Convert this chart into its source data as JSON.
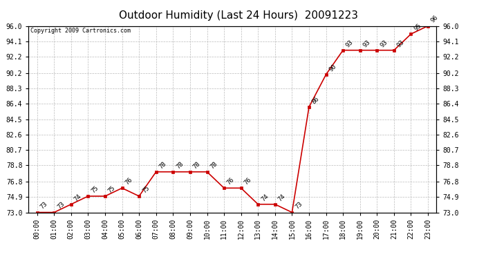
{
  "title": "Outdoor Humidity (Last 24 Hours)  20091223",
  "copyright": "Copyright 2009 Cartronics.com",
  "x_labels": [
    "00:00",
    "01:00",
    "02:00",
    "03:00",
    "04:00",
    "05:00",
    "06:00",
    "07:00",
    "08:00",
    "09:00",
    "10:00",
    "11:00",
    "12:00",
    "13:00",
    "14:00",
    "15:00",
    "16:00",
    "17:00",
    "18:00",
    "19:00",
    "20:00",
    "21:00",
    "22:00",
    "23:00"
  ],
  "x_values": [
    0,
    1,
    2,
    3,
    4,
    5,
    6,
    7,
    8,
    9,
    10,
    11,
    12,
    13,
    14,
    15,
    16,
    17,
    18,
    19,
    20,
    21,
    22,
    23
  ],
  "y_values": [
    73,
    73,
    74,
    75,
    75,
    76,
    75,
    78,
    78,
    78,
    78,
    76,
    76,
    74,
    74,
    73,
    86,
    90,
    93,
    93,
    93,
    93,
    95,
    96
  ],
  "point_labels": [
    "73",
    "73",
    "74",
    "75",
    "75",
    "76",
    "75",
    "78",
    "78",
    "78",
    "78",
    "76",
    "76",
    "74",
    "74",
    "73",
    "86",
    "90",
    "93",
    "93",
    "93",
    "93",
    "95",
    "96"
  ],
  "ylim_min": 73.0,
  "ylim_max": 96.0,
  "yticks": [
    73.0,
    74.9,
    76.8,
    78.8,
    80.7,
    82.6,
    84.5,
    86.4,
    88.3,
    90.2,
    92.2,
    94.1,
    96.0
  ],
  "line_color": "#cc0000",
  "marker_color": "#cc0000",
  "bg_color": "#ffffff",
  "plot_bg_color": "#ffffff",
  "grid_color": "#bbbbbb",
  "title_fontsize": 11,
  "tick_fontsize": 7,
  "annotation_fontsize": 6.5,
  "copyright_fontsize": 6
}
